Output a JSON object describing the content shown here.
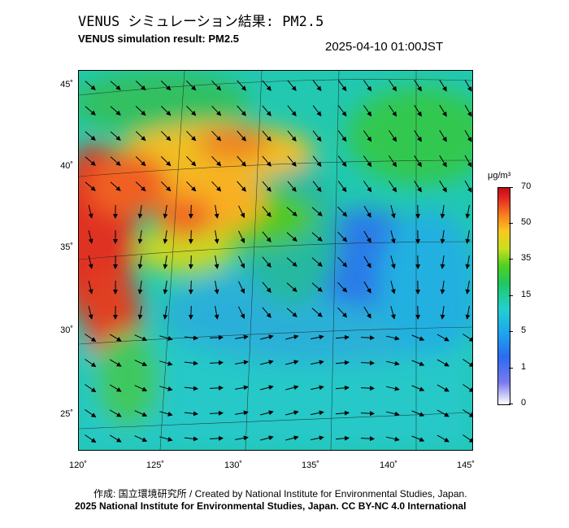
{
  "header": {
    "title_jp": "VENUS シミュレーション結果: PM2.5",
    "title_en": "VENUS simulation result: PM2.5",
    "timestamp": "2025-04-10 01:00JST"
  },
  "map": {
    "lat_labels": [
      "45˚",
      "40˚",
      "35˚",
      "30˚",
      "25˚"
    ],
    "lon_labels": [
      "120˚",
      "125˚",
      "130˚",
      "135˚",
      "140˚",
      "145˚"
    ]
  },
  "colorbar": {
    "unit": "μg/m³",
    "ticks": [
      "70",
      "50",
      "35",
      "15",
      "5",
      "1",
      "0"
    ]
  },
  "footer": {
    "credit_line1": "作成: 国立環境研究所 / Created by National Institute for Environmental Studies, Japan.",
    "credit_line2": "2025 National Institute for Environmental Studies, Japan. CC BY-NC 4.0 International"
  }
}
